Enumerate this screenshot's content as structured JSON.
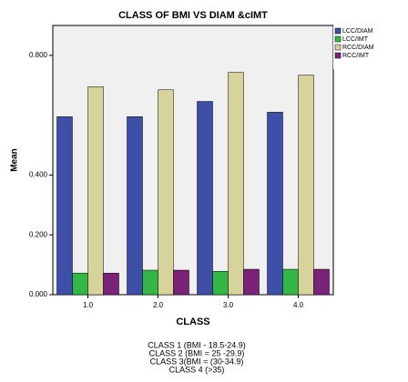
{
  "chart_data": {
    "type": "bar",
    "title": "CLASS OF BMI VS DIAM &cIMT",
    "y_label": "Mean",
    "x_label": "CLASS",
    "notes": [
      "CLASS 1 (BMI - 18.5-24.9)",
      "CLASS 2 (BMI =  25 -29.9)",
      "CLASS 3(BMI = (30-34.9)",
      "CLASS 4 (>35)"
    ],
    "categories": [
      "1.0",
      "2.0",
      "3.0",
      "4.0"
    ],
    "series": [
      {
        "name": "LCC/DIAM",
        "color": "#3d4fa8",
        "values": [
          0.595,
          0.595,
          0.646,
          0.61
        ]
      },
      {
        "name": "LCC/IMT",
        "color": "#33b845",
        "values": [
          0.072,
          0.082,
          0.078,
          0.085
        ]
      },
      {
        "name": "RCC/DIAM",
        "color": "#d6d49a",
        "values": [
          0.695,
          0.685,
          0.743,
          0.734
        ]
      },
      {
        "name": "RCC/IMT",
        "color": "#7a2278",
        "values": [
          0.072,
          0.082,
          0.085,
          0.085
        ]
      }
    ],
    "ylim": [
      0,
      0.9
    ],
    "yticks": [
      {
        "value": 0,
        "label": "0.000"
      },
      {
        "value": 0.2,
        "label": "0.200"
      },
      {
        "value": 0.4,
        "label": "0.400"
      },
      {
        "value": 0.8,
        "label": "0.800"
      }
    ],
    "legend": "right"
  }
}
